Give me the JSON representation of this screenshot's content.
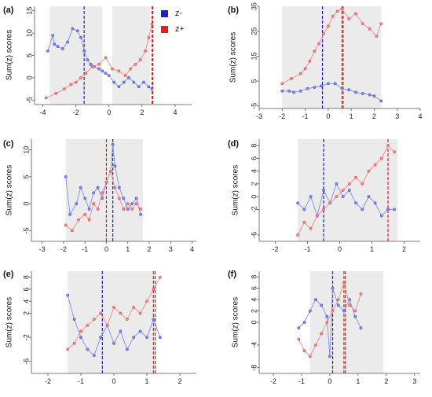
{
  "chart_data": [
    {
      "type": "scatter",
      "panel_label": "(a)",
      "ylabel": "Sum(z) scores",
      "xlim": [
        -4.5,
        5
      ],
      "ylim": [
        -6,
        16
      ],
      "xticks": [
        -4,
        -2,
        0,
        2,
        4
      ],
      "yticks": [
        -5,
        0,
        5,
        10,
        15
      ],
      "shaded_ranges": [
        [
          -3.6,
          -0.4
        ],
        [
          0.2,
          2.5
        ]
      ],
      "vlines": [
        {
          "x": -1.5,
          "series": "z-"
        },
        {
          "x": 2.6,
          "series": "z+"
        },
        {
          "x": 2.65,
          "series": "z+"
        }
      ],
      "series": [
        {
          "name": "z-",
          "x": [
            -3.7,
            -3.4,
            -3.3,
            -3.1,
            -2.8,
            -2.5,
            -2.2,
            -1.9,
            -1.7,
            -1.5,
            -1.3,
            -1.1,
            -0.9,
            -0.6,
            -0.4,
            -0.2,
            0.0,
            0.3,
            0.6,
            0.9,
            1.2,
            1.5,
            1.8,
            2.1,
            2.4,
            2.6
          ],
          "y": [
            6,
            9.5,
            7.5,
            7,
            6.5,
            8,
            11,
            10.5,
            9,
            6,
            4,
            3,
            2.5,
            2,
            1.5,
            1,
            0.5,
            -1,
            -2,
            -1,
            0,
            -1,
            -2,
            -1,
            -2,
            -2.5
          ]
        },
        {
          "name": "z+",
          "x": [
            -3.8,
            -3.2,
            -2.7,
            -2.3,
            -2.0,
            -1.7,
            -1.4,
            -1.0,
            -0.6,
            -0.2,
            0.2,
            0.6,
            1.0,
            1.3,
            1.6,
            1.9,
            2.2,
            2.4,
            2.6
          ],
          "y": [
            -4.5,
            -3.5,
            -2.5,
            -1.5,
            -1,
            0,
            1,
            2.5,
            3,
            4.5,
            2,
            1.5,
            0.5,
            2,
            3,
            4,
            6,
            9,
            12
          ]
        }
      ]
    },
    {
      "type": "scatter",
      "panel_label": "(b)",
      "ylabel": "Sum(z) scores",
      "xlim": [
        -3,
        4
      ],
      "ylim": [
        -6,
        35
      ],
      "xticks": [
        -3,
        -2,
        -1,
        0,
        1,
        2,
        3,
        4
      ],
      "yticks": [
        -5,
        5,
        15,
        25,
        35
      ],
      "shaded_ranges": [
        [
          -2.0,
          2.3
        ]
      ],
      "vlines": [
        {
          "x": -0.25,
          "series": "z-"
        },
        {
          "x": 0.6,
          "series": "z+"
        },
        {
          "x": 0.65,
          "series": "z+"
        }
      ],
      "series": [
        {
          "name": "z-",
          "x": [
            -2.0,
            -1.7,
            -1.5,
            -1.2,
            -0.9,
            -0.6,
            -0.3,
            0.0,
            0.3,
            0.6,
            0.9,
            1.2,
            1.5,
            1.8,
            2.0,
            2.3
          ],
          "y": [
            1,
            1,
            0.5,
            1,
            2,
            2.5,
            3,
            4,
            4,
            2,
            1.5,
            0.5,
            0,
            -0.5,
            -1,
            -3
          ]
        },
        {
          "name": "z+",
          "x": [
            -2.0,
            -1.6,
            -1.2,
            -1.0,
            -0.8,
            -0.6,
            -0.4,
            -0.2,
            0.0,
            0.2,
            0.4,
            0.6,
            0.9,
            1.2,
            1.5,
            1.8,
            2.1,
            2.3
          ],
          "y": [
            4,
            6,
            8,
            10,
            13,
            17,
            20,
            24,
            27,
            31,
            33,
            34,
            30,
            32,
            28,
            26,
            23,
            28
          ]
        }
      ]
    },
    {
      "type": "scatter",
      "panel_label": "(c)",
      "ylabel": "Sum(z) scores",
      "xlim": [
        -3.5,
        4.2
      ],
      "ylim": [
        -7,
        12
      ],
      "xticks": [
        -3,
        -2,
        -1,
        0,
        1,
        2,
        3,
        4
      ],
      "yticks": [
        -5,
        0,
        5,
        10
      ],
      "shaded_ranges": [
        [
          -1.9,
          1.7
        ]
      ],
      "vlines": [
        {
          "x": 0.3,
          "series": "z-"
        },
        {
          "x": 0.0,
          "series": "z+"
        }
      ],
      "series": [
        {
          "name": "z-",
          "x": [
            -1.9,
            -1.7,
            -1.4,
            -1.2,
            -1.0,
            -0.8,
            -0.6,
            -0.4,
            -0.2,
            0.0,
            0.2,
            0.3,
            0.4,
            0.6,
            0.8,
            1.0,
            1.2,
            1.4,
            1.6
          ],
          "y": [
            5,
            -2,
            0,
            3,
            1,
            -1,
            2,
            3,
            1,
            4,
            6,
            11,
            7,
            3,
            1,
            -1,
            0,
            1,
            -2
          ]
        },
        {
          "name": "z+",
          "x": [
            -1.9,
            -1.6,
            -1.3,
            -1.0,
            -0.8,
            -0.6,
            -0.4,
            -0.2,
            0.0,
            0.2,
            0.4,
            0.6,
            0.8,
            1.0,
            1.2,
            1.4,
            1.6
          ],
          "y": [
            -4,
            -5,
            -3,
            -2,
            -3,
            0,
            -1,
            2,
            4,
            6,
            3,
            1,
            -1,
            0,
            -1,
            0,
            -1
          ]
        }
      ]
    },
    {
      "type": "scatter",
      "panel_label": "(d)",
      "ylabel": "Sum(z) scores",
      "xlim": [
        -2.5,
        2.5
      ],
      "ylim": [
        -7,
        9
      ],
      "xticks": [
        -2,
        -1,
        0,
        1,
        2
      ],
      "yticks": [
        -6,
        -2,
        0,
        2,
        4,
        6,
        8
      ],
      "shaded_ranges": [
        [
          -1.3,
          1.8
        ]
      ],
      "vlines": [
        {
          "x": -0.5,
          "series": "z-"
        },
        {
          "x": 1.5,
          "series": "z+"
        }
      ],
      "series": [
        {
          "name": "z-",
          "x": [
            -1.3,
            -1.1,
            -0.9,
            -0.7,
            -0.5,
            -0.3,
            -0.1,
            0.1,
            0.3,
            0.5,
            0.7,
            0.9,
            1.1,
            1.3,
            1.5,
            1.7
          ],
          "y": [
            -1,
            -2,
            0,
            -3,
            1,
            -1,
            2,
            0,
            1,
            -1,
            -2,
            0,
            -1,
            -3,
            -2,
            -2
          ]
        },
        {
          "name": "z+",
          "x": [
            -1.3,
            -1.1,
            -0.9,
            -0.7,
            -0.5,
            -0.3,
            -0.1,
            0.1,
            0.3,
            0.5,
            0.7,
            0.9,
            1.1,
            1.3,
            1.5,
            1.7
          ],
          "y": [
            -6,
            -4,
            -5,
            -3,
            -2,
            -1,
            0,
            1,
            2,
            3,
            2,
            4,
            5,
            6,
            8,
            7
          ]
        }
      ]
    },
    {
      "type": "scatter",
      "panel_label": "(e)",
      "ylabel": "Sum(z) scores",
      "xlim": [
        -2.5,
        2.5
      ],
      "ylim": [
        -8,
        9
      ],
      "xticks": [
        -2,
        -1,
        0,
        1,
        2
      ],
      "yticks": [
        -6,
        -2,
        2,
        4,
        6,
        8
      ],
      "shaded_ranges": [
        [
          -1.4,
          1.3
        ]
      ],
      "vlines": [
        {
          "x": -0.35,
          "series": "z-"
        },
        {
          "x": 1.2,
          "series": "z+"
        },
        {
          "x": 1.25,
          "series": "z+"
        }
      ],
      "series": [
        {
          "name": "z-",
          "x": [
            -1.4,
            -1.2,
            -1.0,
            -0.8,
            -0.6,
            -0.4,
            -0.2,
            0.0,
            0.2,
            0.4,
            0.6,
            0.8,
            1.0,
            1.2,
            1.4
          ],
          "y": [
            5,
            1,
            -2,
            -4,
            -5,
            -2,
            0,
            -3,
            -1,
            -4,
            -2,
            -1,
            -2,
            1,
            -2
          ]
        },
        {
          "name": "z+",
          "x": [
            -1.4,
            -1.2,
            -1.0,
            -0.8,
            -0.6,
            -0.4,
            -0.2,
            0.0,
            0.2,
            0.4,
            0.6,
            0.8,
            1.0,
            1.2,
            1.4
          ],
          "y": [
            -4,
            -3,
            -1,
            0,
            1,
            2,
            0,
            3,
            2,
            1,
            3,
            2,
            4,
            6,
            8
          ]
        }
      ]
    },
    {
      "type": "scatter",
      "panel_label": "(f)",
      "ylabel": "Sum(z) scores",
      "xlim": [
        -2.5,
        3.2
      ],
      "ylim": [
        -9,
        9
      ],
      "xticks": [
        -2,
        -1,
        0,
        1,
        2,
        3
      ],
      "yticks": [
        -8,
        -4,
        0,
        2,
        4,
        6,
        8
      ],
      "shaded_ranges": [
        [
          -0.7,
          1.9
        ]
      ],
      "vlines": [
        {
          "x": 0.1,
          "series": "z-"
        },
        {
          "x": 0.5,
          "series": "z+"
        },
        {
          "x": 0.55,
          "series": "z+"
        }
      ],
      "series": [
        {
          "name": "z-",
          "x": [
            -1.1,
            -0.9,
            -0.7,
            -0.5,
            -0.3,
            -0.1,
            0.0,
            0.1,
            0.3,
            0.5,
            0.7,
            0.9,
            1.1
          ],
          "y": [
            -1,
            0,
            2,
            4,
            3,
            1,
            -6,
            6,
            3,
            2,
            4,
            1,
            -1
          ]
        },
        {
          "name": "z+",
          "x": [
            -1.1,
            -0.9,
            -0.7,
            -0.5,
            -0.3,
            -0.1,
            0.1,
            0.3,
            0.5,
            0.7,
            0.9,
            1.1
          ],
          "y": [
            -3,
            -5,
            -6,
            -4,
            -2,
            0,
            2,
            4,
            7,
            3,
            2,
            5
          ]
        }
      ]
    }
  ],
  "legend": {
    "items": [
      {
        "label": "z-",
        "color": "#1f1fcc"
      },
      {
        "label": "z+",
        "color": "#e02020"
      }
    ]
  },
  "colors": {
    "z-": "#1f1fcc",
    "z+": "#e02020",
    "z-_line": "#7f8fe8",
    "z+_line": "#f08a8a",
    "shade": "#ebebeb"
  }
}
